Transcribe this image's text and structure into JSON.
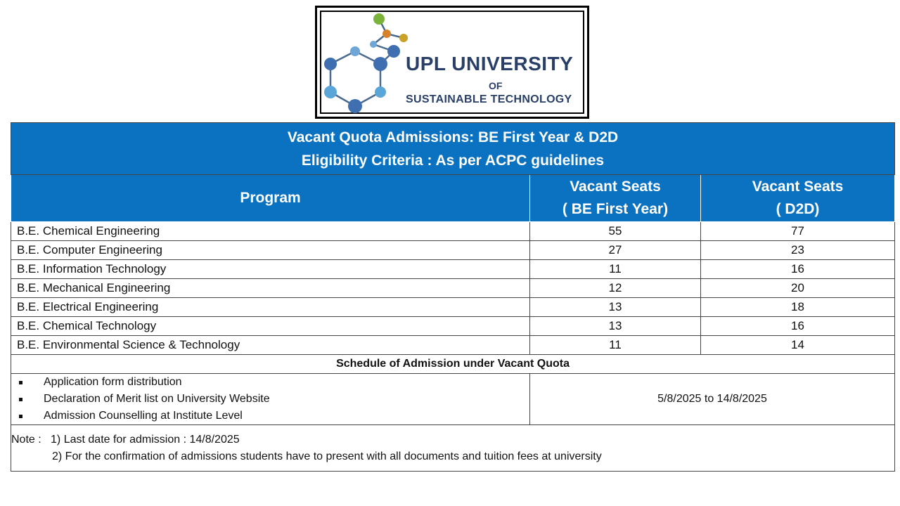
{
  "logo": {
    "name": "UPL UNIVERSITY",
    "of": "OF",
    "subtitle": "SUSTAINABLE TECHNOLOGY"
  },
  "header": {
    "line1": "Vacant Quota Admissions: BE First Year & D2D",
    "line2": "Eligibility Criteria : As per ACPC guidelines"
  },
  "columns": {
    "program": "Program",
    "be_line1": "Vacant Seats",
    "be_line2": "( BE First Year)",
    "d2d_line1": "Vacant Seats",
    "d2d_line2": "( D2D)"
  },
  "rows": [
    {
      "program": "B.E. Chemical Engineering",
      "be": "55",
      "d2d": "77"
    },
    {
      "program": "B.E. Computer Engineering",
      "be": "27",
      "d2d": "23"
    },
    {
      "program": "B.E. Information Technology",
      "be": "11",
      "d2d": "16"
    },
    {
      "program": "B.E. Mechanical Engineering",
      "be": "12",
      "d2d": "20"
    },
    {
      "program": "B.E. Electrical Engineering",
      "be": "13",
      "d2d": "18"
    },
    {
      "program": "B.E. Chemical Technology",
      "be": "13",
      "d2d": "16"
    },
    {
      "program": "B.E. Environmental Science & Technology",
      "be": "11",
      "d2d": "14"
    }
  ],
  "schedule": {
    "title": "Schedule of Admission under Vacant Quota",
    "items": [
      "Application form distribution",
      "Declaration of Merit list on University Website",
      "Admission Counselling at Institute Level"
    ],
    "dates": "5/8/2025 to 14/8/2025"
  },
  "note": {
    "label": "Note :",
    "line1": "1) Last date for admission : 14/8/2025",
    "line2": "2) For the confirmation of admissions students have to present with all documents and tuition fees at university"
  },
  "colors": {
    "header_blue": "#0a72c0",
    "logo_text": "#2a3f67"
  }
}
